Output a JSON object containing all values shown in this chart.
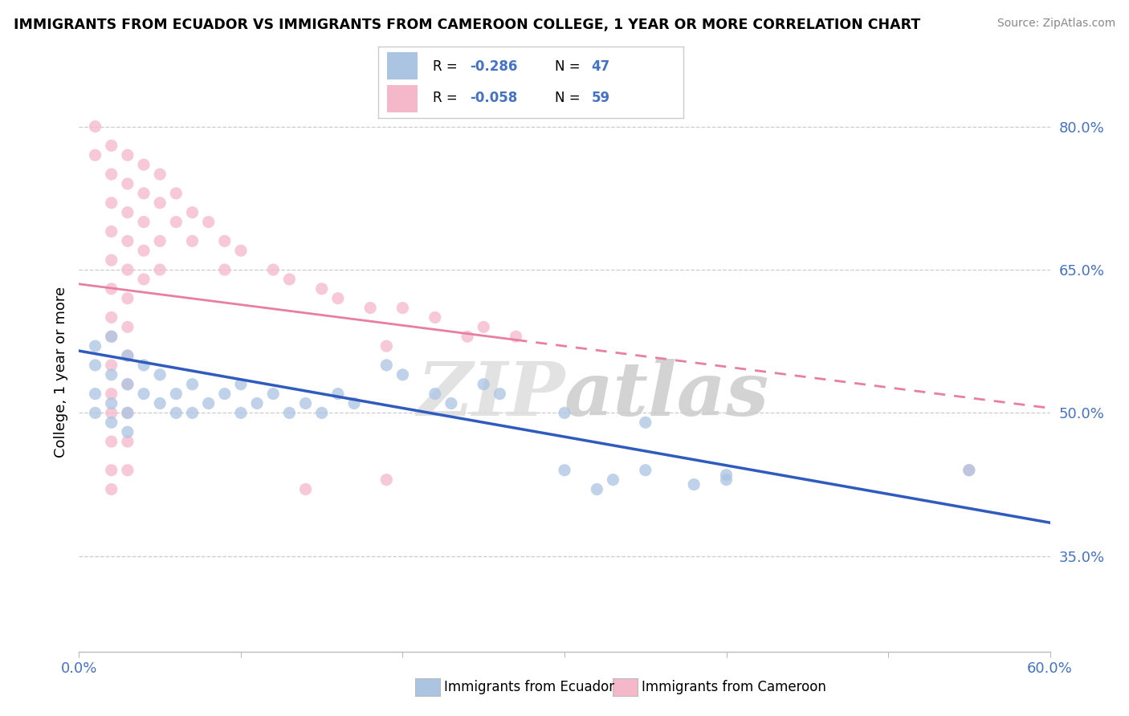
{
  "title": "IMMIGRANTS FROM ECUADOR VS IMMIGRANTS FROM CAMEROON COLLEGE, 1 YEAR OR MORE CORRELATION CHART",
  "source": "Source: ZipAtlas.com",
  "ylabel": "College, 1 year or more",
  "xlim": [
    0.0,
    0.6
  ],
  "ylim": [
    0.25,
    0.835
  ],
  "xticks": [
    0.0,
    0.1,
    0.2,
    0.3,
    0.4,
    0.5,
    0.6
  ],
  "xticklabels": [
    "0.0%",
    "",
    "",
    "",
    "",
    "",
    "60.0%"
  ],
  "yticks_right": [
    0.35,
    0.5,
    0.65,
    0.8
  ],
  "ytick_labels_right": [
    "35.0%",
    "50.0%",
    "65.0%",
    "80.0%"
  ],
  "ecuador_color": "#aac4e2",
  "cameroon_color": "#f5b8cb",
  "ecuador_line_color": "#2f5bbf",
  "cameroon_line_color": "#e87fa0",
  "R_ecuador": -0.286,
  "N_ecuador": 47,
  "R_cameroon": -0.058,
  "N_cameroon": 59,
  "watermark": "ZIPatlas",
  "legend_label_ecuador": "Immigrants from Ecuador",
  "legend_label_cameroon": "Immigrants from Cameroon",
  "ecuador_line": [
    0.0,
    0.565,
    0.6,
    0.385
  ],
  "cameroon_line": [
    0.0,
    0.635,
    0.6,
    0.505
  ],
  "ecuador_scatter": [
    [
      0.01,
      0.57
    ],
    [
      0.01,
      0.55
    ],
    [
      0.01,
      0.52
    ],
    [
      0.01,
      0.5
    ],
    [
      0.02,
      0.58
    ],
    [
      0.02,
      0.54
    ],
    [
      0.02,
      0.51
    ],
    [
      0.02,
      0.49
    ],
    [
      0.03,
      0.56
    ],
    [
      0.03,
      0.53
    ],
    [
      0.03,
      0.5
    ],
    [
      0.03,
      0.48
    ],
    [
      0.04,
      0.55
    ],
    [
      0.04,
      0.52
    ],
    [
      0.05,
      0.54
    ],
    [
      0.05,
      0.51
    ],
    [
      0.06,
      0.52
    ],
    [
      0.06,
      0.5
    ],
    [
      0.07,
      0.53
    ],
    [
      0.07,
      0.5
    ],
    [
      0.08,
      0.51
    ],
    [
      0.09,
      0.52
    ],
    [
      0.1,
      0.5
    ],
    [
      0.1,
      0.53
    ],
    [
      0.11,
      0.51
    ],
    [
      0.12,
      0.52
    ],
    [
      0.13,
      0.5
    ],
    [
      0.14,
      0.51
    ],
    [
      0.15,
      0.5
    ],
    [
      0.16,
      0.52
    ],
    [
      0.17,
      0.51
    ],
    [
      0.19,
      0.55
    ],
    [
      0.2,
      0.54
    ],
    [
      0.22,
      0.52
    ],
    [
      0.23,
      0.51
    ],
    [
      0.25,
      0.53
    ],
    [
      0.26,
      0.52
    ],
    [
      0.3,
      0.5
    ],
    [
      0.35,
      0.49
    ],
    [
      0.55,
      0.44
    ],
    [
      0.35,
      0.44
    ],
    [
      0.4,
      0.43
    ],
    [
      0.38,
      0.425
    ],
    [
      0.33,
      0.43
    ],
    [
      0.4,
      0.435
    ],
    [
      0.32,
      0.42
    ],
    [
      0.3,
      0.44
    ]
  ],
  "cameroon_scatter": [
    [
      0.01,
      0.8
    ],
    [
      0.01,
      0.77
    ],
    [
      0.02,
      0.78
    ],
    [
      0.02,
      0.75
    ],
    [
      0.02,
      0.72
    ],
    [
      0.02,
      0.69
    ],
    [
      0.02,
      0.66
    ],
    [
      0.02,
      0.63
    ],
    [
      0.02,
      0.6
    ],
    [
      0.02,
      0.58
    ],
    [
      0.02,
      0.55
    ],
    [
      0.02,
      0.52
    ],
    [
      0.02,
      0.5
    ],
    [
      0.02,
      0.47
    ],
    [
      0.02,
      0.44
    ],
    [
      0.02,
      0.42
    ],
    [
      0.03,
      0.77
    ],
    [
      0.03,
      0.74
    ],
    [
      0.03,
      0.71
    ],
    [
      0.03,
      0.68
    ],
    [
      0.03,
      0.65
    ],
    [
      0.03,
      0.62
    ],
    [
      0.03,
      0.59
    ],
    [
      0.03,
      0.56
    ],
    [
      0.03,
      0.53
    ],
    [
      0.03,
      0.5
    ],
    [
      0.03,
      0.47
    ],
    [
      0.03,
      0.44
    ],
    [
      0.04,
      0.76
    ],
    [
      0.04,
      0.73
    ],
    [
      0.04,
      0.7
    ],
    [
      0.04,
      0.67
    ],
    [
      0.04,
      0.64
    ],
    [
      0.05,
      0.75
    ],
    [
      0.05,
      0.72
    ],
    [
      0.05,
      0.68
    ],
    [
      0.05,
      0.65
    ],
    [
      0.06,
      0.73
    ],
    [
      0.06,
      0.7
    ],
    [
      0.07,
      0.71
    ],
    [
      0.07,
      0.68
    ],
    [
      0.08,
      0.7
    ],
    [
      0.09,
      0.68
    ],
    [
      0.09,
      0.65
    ],
    [
      0.1,
      0.67
    ],
    [
      0.12,
      0.65
    ],
    [
      0.13,
      0.64
    ],
    [
      0.15,
      0.63
    ],
    [
      0.16,
      0.62
    ],
    [
      0.18,
      0.61
    ],
    [
      0.2,
      0.61
    ],
    [
      0.22,
      0.6
    ],
    [
      0.25,
      0.59
    ],
    [
      0.19,
      0.57
    ],
    [
      0.24,
      0.58
    ],
    [
      0.27,
      0.58
    ],
    [
      0.14,
      0.42
    ],
    [
      0.19,
      0.43
    ],
    [
      0.55,
      0.44
    ]
  ]
}
